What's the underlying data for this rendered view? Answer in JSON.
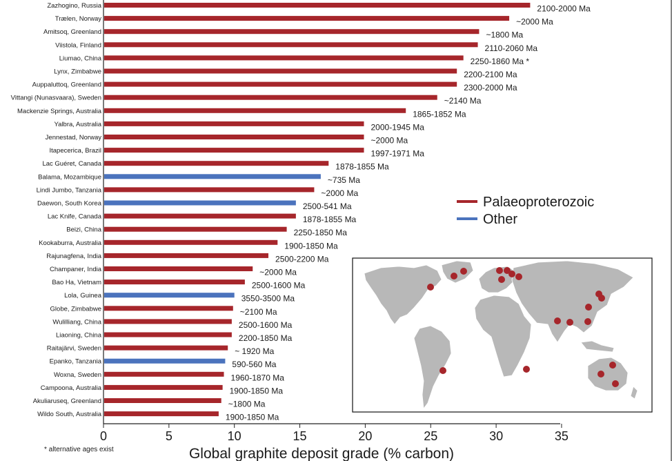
{
  "chart_data": {
    "type": "bar",
    "orientation": "horizontal",
    "xlabel": "Global graphite deposit grade (% carbon)",
    "xlim": [
      0,
      35
    ],
    "xticks": [
      0,
      5,
      10,
      15,
      20,
      25,
      30,
      35
    ],
    "footnote": "* alternative ages exist",
    "legend": {
      "position": "right",
      "entries": [
        {
          "name": "Palaeoproterozoic",
          "color": "#a6262b"
        },
        {
          "name": "Other",
          "color": "#4b73bd"
        }
      ]
    },
    "bars": [
      {
        "category": "Zazhogino, Russia",
        "value": 32.6,
        "age": "2100-2000 Ma",
        "group": 0
      },
      {
        "category": "Trælen, Norway",
        "value": 31.0,
        "age": "~2000 Ma",
        "group": 0
      },
      {
        "category": "Amitsoq, Greenland",
        "value": 28.7,
        "age": "~1800 Ma",
        "group": 0
      },
      {
        "category": "Viistola, Finland",
        "value": 28.6,
        "age": "2110-2060 Ma",
        "group": 0
      },
      {
        "category": "Liumao, China",
        "value": 27.5,
        "age": "2250-1860 Ma *",
        "group": 0
      },
      {
        "category": "Lynx, Zimbabwe",
        "value": 27.0,
        "age": "2200-2100 Ma",
        "group": 0
      },
      {
        "category": "Auppaluttoq, Greenland",
        "value": 27.0,
        "age": "2300-2000 Ma",
        "group": 0
      },
      {
        "category": "Vittangi (Nunasvaara), Sweden",
        "value": 25.5,
        "age": "~2140 Ma",
        "group": 0
      },
      {
        "category": "Mackenzie Springs, Australia",
        "value": 23.1,
        "age": "1865-1852 Ma",
        "group": 0
      },
      {
        "category": "Yalbra, Australia",
        "value": 19.9,
        "age": "2000-1945 Ma",
        "group": 0
      },
      {
        "category": "Jennestad, Norway",
        "value": 19.9,
        "age": "~2000 Ma",
        "group": 0
      },
      {
        "category": "Itapecerica, Brazil",
        "value": 19.9,
        "age": "1997-1971 Ma",
        "group": 0
      },
      {
        "category": "Lac Guéret, Canada",
        "value": 17.2,
        "age": "1878-1855 Ma",
        "group": 0
      },
      {
        "category": "Balama, Mozambique",
        "value": 16.6,
        "age": "~735 Ma",
        "group": 1
      },
      {
        "category": "Lindi Jumbo, Tanzania",
        "value": 16.1,
        "age": "~2000 Ma",
        "group": 0
      },
      {
        "category": "Daewon, South Korea",
        "value": 14.7,
        "age": "2500-541 Ma",
        "group": 1
      },
      {
        "category": "Lac Knife, Canada",
        "value": 14.7,
        "age": "1878-1855 Ma",
        "group": 0
      },
      {
        "category": "Beizi, China",
        "value": 14.0,
        "age": "2250-1850 Ma",
        "group": 0
      },
      {
        "category": "Kookaburra, Australia",
        "value": 13.3,
        "age": "1900-1850 Ma",
        "group": 0
      },
      {
        "category": "Rajunagfena, India",
        "value": 12.6,
        "age": "2500-2200 Ma",
        "group": 0
      },
      {
        "category": "Champaner, India",
        "value": 11.4,
        "age": "~2000 Ma",
        "group": 0
      },
      {
        "category": "Bao Ha, Vietnam",
        "value": 10.8,
        "age": "2500-1600 Ma",
        "group": 0
      },
      {
        "category": "Lola, Guinea",
        "value": 10.0,
        "age": "3550-3500 Ma",
        "group": 1
      },
      {
        "category": "Globe, Zimbabwe",
        "value": 9.9,
        "age": "~2100 Ma",
        "group": 0
      },
      {
        "category": "Wulilliang, China",
        "value": 9.8,
        "age": "2500-1600 Ma",
        "group": 0
      },
      {
        "category": "Liaoning, China",
        "value": 9.8,
        "age": "2200-1850 Ma",
        "group": 0
      },
      {
        "category": "Raitajärvi, Sweden",
        "value": 9.5,
        "age": "~ 1920 Ma",
        "group": 0
      },
      {
        "category": "Epanko, Tanzania",
        "value": 9.3,
        "age": "590-560 Ma",
        "group": 1
      },
      {
        "category": "Woxna, Sweden",
        "value": 9.2,
        "age": "1960-1870 Ma",
        "group": 0
      },
      {
        "category": "Campoona, Australia",
        "value": 9.1,
        "age": "1900-1850 Ma",
        "group": 0
      },
      {
        "category": "Akuliaruseq, Greenland",
        "value": 9.0,
        "age": "~1800 Ma",
        "group": 0
      },
      {
        "category": "Wildo South, Australia",
        "value": 8.8,
        "age": "1900-1850 Ma",
        "group": 0
      }
    ],
    "map_inset": {
      "markers": "deposit locations"
    }
  }
}
